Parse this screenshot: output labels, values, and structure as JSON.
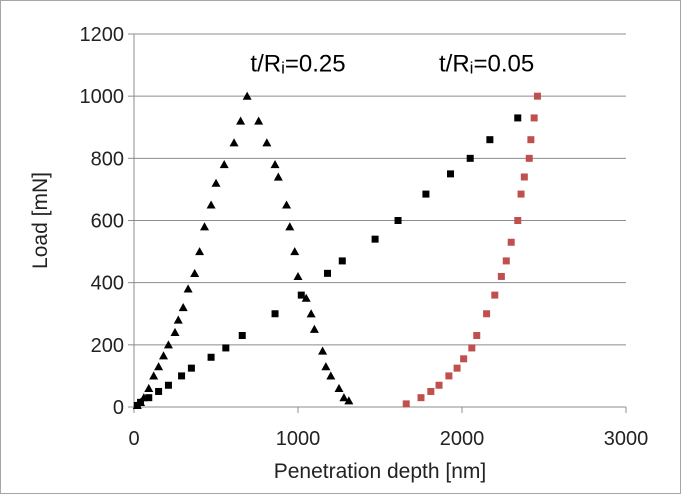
{
  "chart_data": {
    "type": "scatter",
    "xlabel": "Penetration depth [nm]",
    "ylabel": "Load [mN]",
    "xlim": [
      0,
      3000
    ],
    "ylim": [
      0,
      1200
    ],
    "xticks": [
      0,
      1000,
      2000,
      3000
    ],
    "yticks": [
      0,
      200,
      400,
      600,
      800,
      1000,
      1200
    ],
    "grid": "horizontal",
    "legend": "none",
    "annotations": [
      {
        "text": "t/R",
        "sub": "i",
        "after": "=0.25",
        "x": 1000,
        "y": 1080
      },
      {
        "text": "t/R",
        "sub": "i",
        "after": "=0.05",
        "x": 2150,
        "y": 1080
      }
    ],
    "series": [
      {
        "marker": "triangle",
        "color": "#000000",
        "points": [
          [
            20,
            5
          ],
          [
            40,
            15
          ],
          [
            60,
            30
          ],
          [
            90,
            60
          ],
          [
            120,
            100
          ],
          [
            150,
            130
          ],
          [
            180,
            165
          ],
          [
            210,
            200
          ],
          [
            250,
            240
          ],
          [
            270,
            280
          ],
          [
            300,
            320
          ],
          [
            330,
            380
          ],
          [
            370,
            430
          ],
          [
            400,
            500
          ],
          [
            430,
            580
          ],
          [
            470,
            650
          ],
          [
            500,
            720
          ],
          [
            550,
            780
          ],
          [
            610,
            850
          ],
          [
            650,
            920
          ],
          [
            690,
            1000
          ],
          [
            760,
            920
          ],
          [
            810,
            850
          ],
          [
            860,
            780
          ],
          [
            880,
            740
          ],
          [
            930,
            650
          ],
          [
            950,
            580
          ],
          [
            980,
            500
          ],
          [
            1000,
            420
          ],
          [
            1050,
            350
          ],
          [
            1080,
            300
          ],
          [
            1100,
            250
          ],
          [
            1150,
            180
          ],
          [
            1170,
            130
          ],
          [
            1200,
            100
          ],
          [
            1250,
            60
          ],
          [
            1280,
            30
          ],
          [
            1310,
            20
          ]
        ]
      },
      {
        "marker": "square",
        "color": "#000000",
        "points": [
          [
            20,
            5
          ],
          [
            40,
            15
          ],
          [
            90,
            30
          ],
          [
            150,
            50
          ],
          [
            210,
            70
          ],
          [
            290,
            100
          ],
          [
            350,
            125
          ],
          [
            470,
            160
          ],
          [
            560,
            190
          ],
          [
            660,
            230
          ],
          [
            860,
            300
          ],
          [
            1020,
            360
          ],
          [
            1180,
            430
          ],
          [
            1270,
            470
          ],
          [
            1470,
            540
          ],
          [
            1610,
            600
          ],
          [
            1780,
            685
          ],
          [
            1930,
            750
          ],
          [
            2050,
            800
          ],
          [
            2170,
            860
          ],
          [
            2340,
            930
          ]
        ]
      },
      {
        "marker": "square",
        "color": "#c0504d",
        "points": [
          [
            1660,
            10
          ],
          [
            1750,
            30
          ],
          [
            1810,
            50
          ],
          [
            1860,
            70
          ],
          [
            1920,
            100
          ],
          [
            1970,
            125
          ],
          [
            2010,
            155
          ],
          [
            2060,
            190
          ],
          [
            2090,
            230
          ],
          [
            2150,
            300
          ],
          [
            2200,
            360
          ],
          [
            2240,
            420
          ],
          [
            2270,
            470
          ],
          [
            2300,
            530
          ],
          [
            2340,
            600
          ],
          [
            2360,
            685
          ],
          [
            2380,
            740
          ],
          [
            2410,
            800
          ],
          [
            2420,
            860
          ],
          [
            2440,
            930
          ],
          [
            2460,
            1000
          ]
        ]
      }
    ]
  }
}
